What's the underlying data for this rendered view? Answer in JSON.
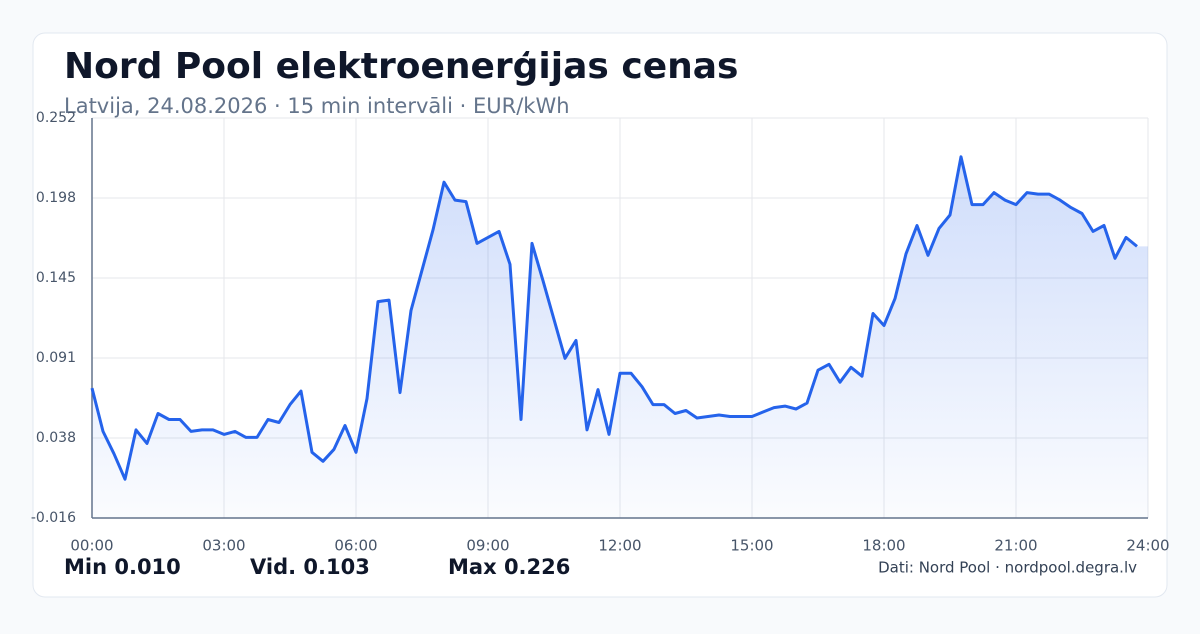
{
  "chart_data": {
    "type": "line",
    "title": "Nord Pool elektroenerģijas cenas",
    "subtitle": "Latvija, 24.08.2026 · 15 min intervāli · EUR/kWh",
    "x": [
      0,
      0.25,
      0.5,
      0.75,
      1,
      1.25,
      1.5,
      1.75,
      2,
      2.25,
      2.5,
      2.75,
      3,
      3.25,
      3.5,
      3.75,
      4,
      4.25,
      4.5,
      4.75,
      5,
      5.25,
      5.5,
      5.75,
      6,
      6.25,
      6.5,
      6.75,
      7,
      7.25,
      7.5,
      7.75,
      8,
      8.25,
      8.5,
      8.75,
      9,
      9.25,
      9.5,
      9.75,
      10,
      10.25,
      10.5,
      10.75,
      11,
      11.25,
      11.5,
      11.75,
      12,
      12.25,
      12.5,
      12.75,
      13,
      13.25,
      13.5,
      13.75,
      14,
      14.25,
      14.5,
      14.75,
      15,
      15.25,
      15.5,
      15.75,
      16,
      16.25,
      16.5,
      16.75,
      17,
      17.25,
      17.5,
      17.75,
      18,
      18.25,
      18.5,
      18.75,
      19,
      19.25,
      19.5,
      19.75,
      20,
      20.25,
      20.5,
      20.75,
      21,
      21.25,
      21.5,
      21.75,
      22,
      22.25,
      22.5,
      22.75,
      23,
      23.25,
      23.5,
      23.75
    ],
    "values": [
      0.071,
      0.042,
      0.027,
      0.01,
      0.043,
      0.034,
      0.054,
      0.05,
      0.05,
      0.042,
      0.043,
      0.043,
      0.04,
      0.042,
      0.038,
      0.038,
      0.05,
      0.048,
      0.06,
      0.069,
      0.028,
      0.022,
      0.03,
      0.046,
      0.028,
      0.064,
      0.129,
      0.13,
      0.068,
      0.123,
      0.15,
      0.177,
      0.209,
      0.197,
      0.196,
      0.168,
      0.172,
      0.176,
      0.154,
      0.05,
      0.168,
      0.143,
      0.117,
      0.091,
      0.103,
      0.043,
      0.07,
      0.04,
      0.081,
      0.081,
      0.072,
      0.06,
      0.06,
      0.054,
      0.056,
      0.051,
      0.052,
      0.053,
      0.052,
      0.052,
      0.052,
      0.055,
      0.058,
      0.059,
      0.057,
      0.061,
      0.083,
      0.087,
      0.075,
      0.085,
      0.079,
      0.121,
      0.113,
      0.131,
      0.161,
      0.18,
      0.16,
      0.178,
      0.187,
      0.226,
      0.194,
      0.194,
      0.202,
      0.197,
      0.194,
      0.202,
      0.201,
      0.201,
      0.197,
      0.192,
      0.188,
      0.176,
      0.18,
      0.158,
      0.172,
      0.166
    ],
    "color": "#2563eb",
    "xlim": [
      0,
      24
    ],
    "xticks": [
      {
        "value": 0,
        "label": "00:00"
      },
      {
        "value": 3,
        "label": "03:00"
      },
      {
        "value": 6,
        "label": "06:00"
      },
      {
        "value": 9,
        "label": "09:00"
      },
      {
        "value": 12,
        "label": "12:00"
      },
      {
        "value": 15,
        "label": "15:00"
      },
      {
        "value": 18,
        "label": "18:00"
      },
      {
        "value": 21,
        "label": "21:00"
      },
      {
        "value": 24,
        "label": "24:00"
      }
    ],
    "ylim": [
      -0.016,
      0.252
    ],
    "yticks": [
      -0.016,
      {
        "value": 0.0376,
        "label": "0.038"
      },
      {
        "value": 0.0912,
        "label": "0.091"
      },
      {
        "value": 0.1448,
        "label": "0.145"
      },
      {
        "value": 0.1984,
        "label": "0.198"
      },
      0.252
    ],
    "grid": true,
    "stats": [
      {
        "name": "Min",
        "value": "0.010"
      },
      {
        "name": "Vid.",
        "value": "0.103"
      },
      {
        "name": "Max",
        "value": "0.226"
      }
    ],
    "source": "Dati: Nord Pool · nordpool.degra.lv"
  }
}
